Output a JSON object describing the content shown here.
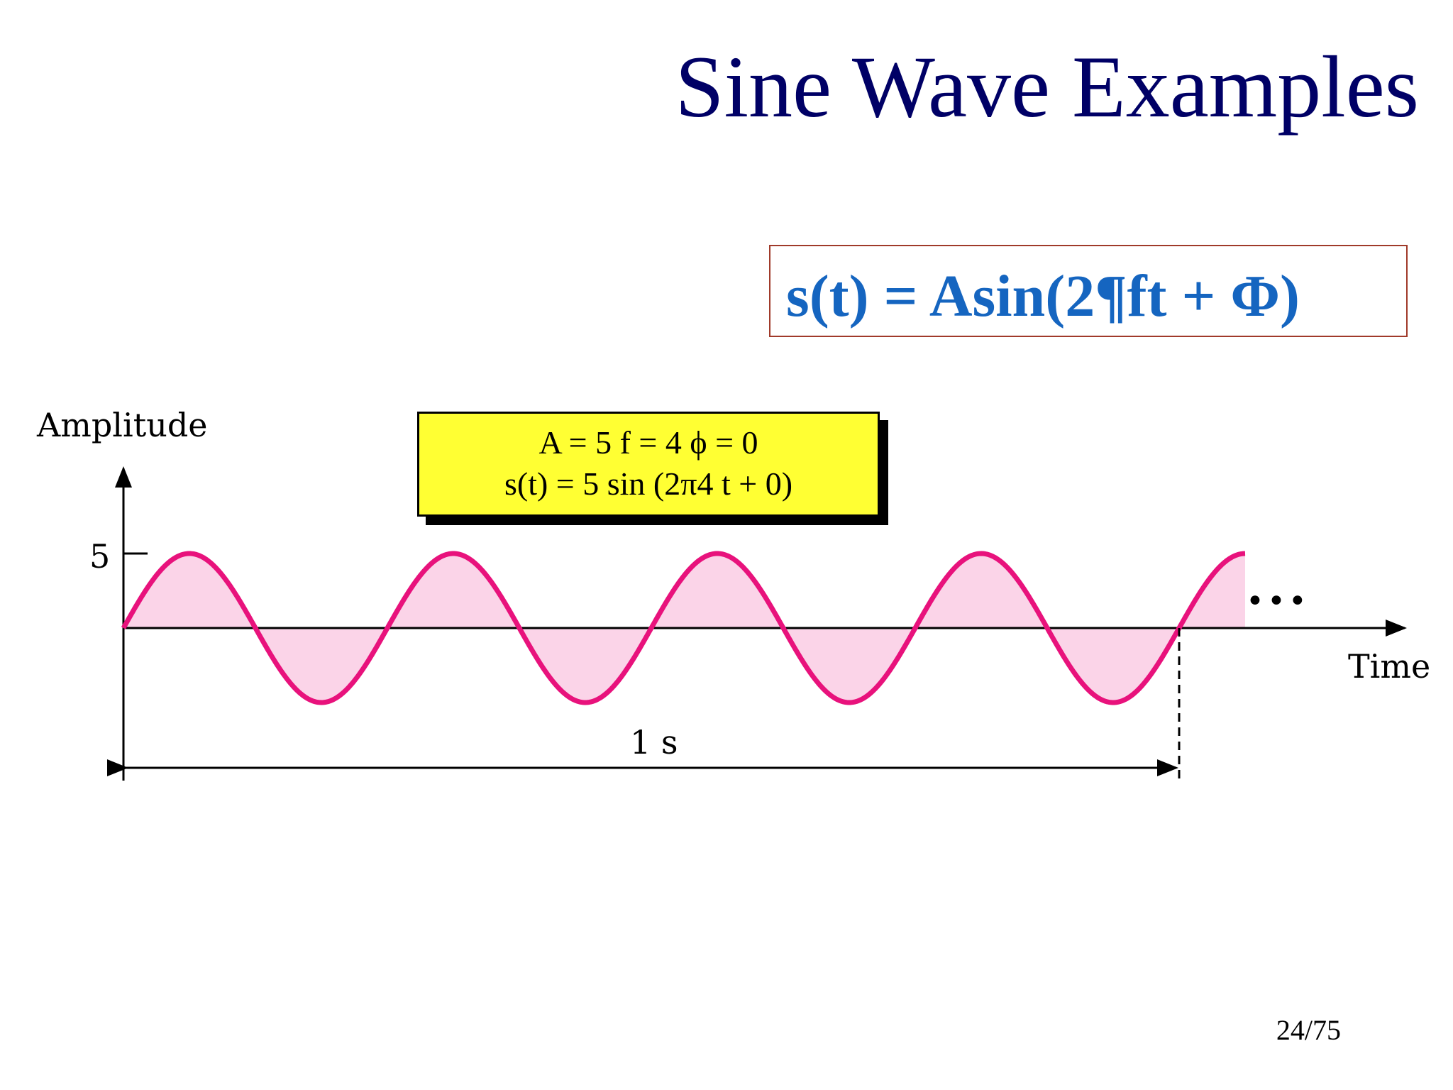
{
  "slide": {
    "title": "Sine Wave Examples",
    "formula": "s(t) = Asin(2¶ft + Φ)",
    "page_number": "24/75"
  },
  "params_box": {
    "line1": "A = 5    f = 4    ϕ = 0",
    "line2": "s(t) = 5 sin (2π4 t + 0)"
  },
  "chart_data": {
    "type": "line",
    "function": "s(t) = 5 sin(2π·4·t + 0)",
    "amplitude": 5,
    "frequency": 4,
    "phase": 0,
    "x_extent": [
      0,
      1.0625
    ],
    "ylim": [
      -5,
      5
    ],
    "xlabel": "Time",
    "ylabel": "Amplitude",
    "y_ticks": [
      5
    ],
    "y_tick_labels": [
      "5"
    ],
    "period_annotation": {
      "from": 0,
      "to": 1,
      "label": "1 s"
    },
    "continuation_mark": "•••",
    "line_color": "#e8127c",
    "fill_color": "#fbd4e8",
    "axis_color": "#000000",
    "grid": false
  }
}
